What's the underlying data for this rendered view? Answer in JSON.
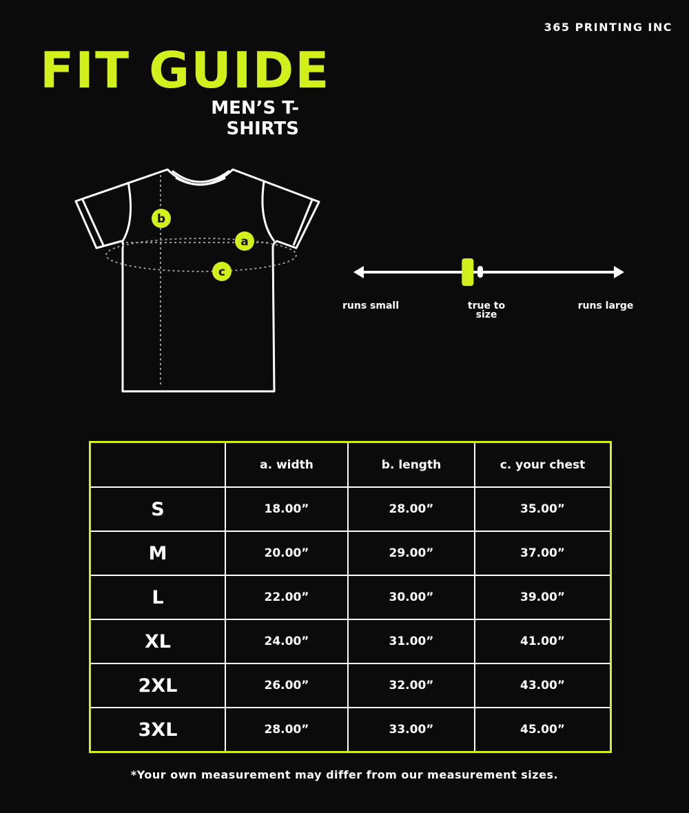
{
  "brand": "365 PRINTING INC",
  "title": "FIT GUIDE",
  "subtitle": "MEN’S T-SHIRTS",
  "accent_color": "#d2f01c",
  "diagram": {
    "markers": [
      "a",
      "b",
      "c"
    ]
  },
  "fit_scale": {
    "left": "runs small",
    "center": "true to size",
    "right": "runs large",
    "fit_position": 0.42
  },
  "table": {
    "headers": [
      "",
      "a. width",
      "b. length",
      "c. your chest"
    ],
    "rows": [
      [
        "S",
        "18.00”",
        "28.00”",
        "35.00”"
      ],
      [
        "M",
        "20.00”",
        "29.00”",
        "37.00”"
      ],
      [
        "L",
        "22.00”",
        "30.00”",
        "39.00”"
      ],
      [
        "XL",
        "24.00”",
        "31.00”",
        "41.00”"
      ],
      [
        "2XL",
        "26.00”",
        "32.00”",
        "43.00”"
      ],
      [
        "3XL",
        "28.00”",
        "33.00”",
        "45.00”"
      ]
    ]
  },
  "note": "*Your own measurement may differ from our measurement sizes."
}
